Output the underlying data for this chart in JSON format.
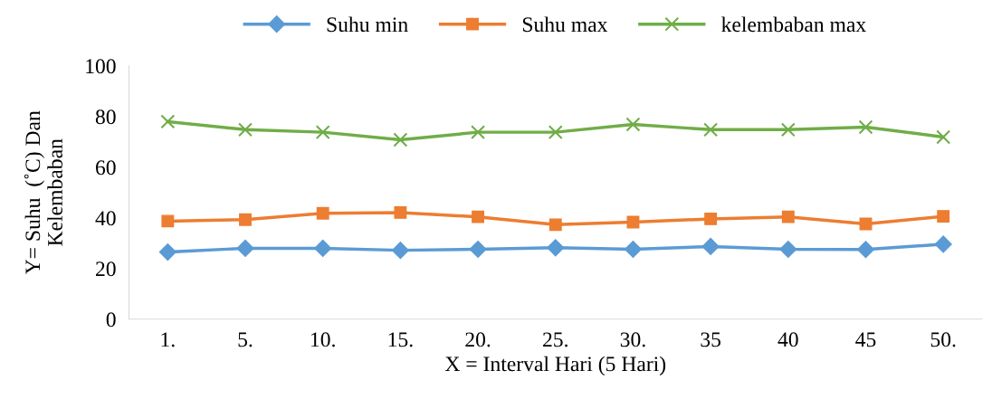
{
  "chart_data": {
    "type": "line",
    "xlabel": "X = Interval Hari (5 Hari)",
    "ylabel": "Y= Suhu  (˚C) Dan\nKelembaban",
    "categories": [
      "1.",
      "5.",
      "10.",
      "15.",
      "20.",
      "25.",
      "30.",
      "35",
      "40",
      "45",
      "50."
    ],
    "series": [
      {
        "name": "Suhu min",
        "color": "#5b9bd5",
        "marker": "diamond",
        "values": [
          26.5,
          28,
          28,
          27.2,
          27.6,
          28.2,
          27.6,
          28.7,
          27.6,
          27.5,
          29.6
        ]
      },
      {
        "name": "Suhu max",
        "color": "#ed7d31",
        "marker": "square",
        "values": [
          38.7,
          39.3,
          41.8,
          42.1,
          40.4,
          37.3,
          38.3,
          39.6,
          40.4,
          37.6,
          40.6
        ]
      },
      {
        "name": "kelembaban max",
        "color": "#70ad47",
        "marker": "cross",
        "values": [
          78,
          74.8,
          73.8,
          70.8,
          73.8,
          73.8,
          76.9,
          74.8,
          74.8,
          75.8,
          71.9
        ]
      }
    ],
    "ylim": [
      0,
      100
    ],
    "yticks": [
      0,
      20,
      40,
      60,
      80,
      100
    ],
    "grid": false,
    "legend": "top"
  }
}
